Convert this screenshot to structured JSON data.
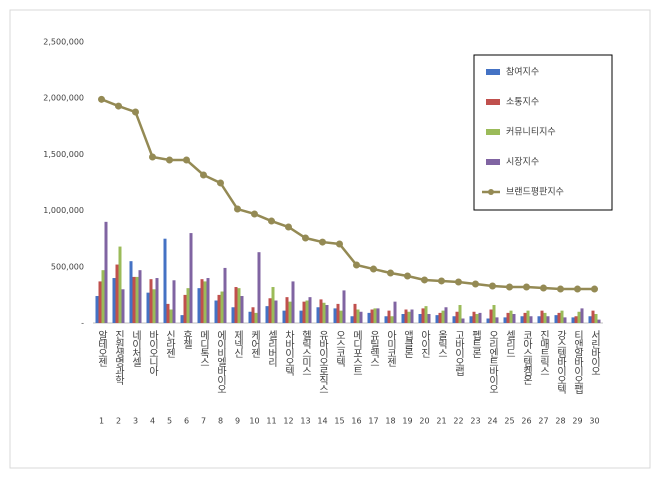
{
  "chart_data": {
    "type": "bar",
    "categories": [
      "알테오젠",
      "진원생명과학",
      "네이처셀",
      "바이오니아",
      "신라젠",
      "휴젤",
      "메디톡스",
      "에이비엘바이오",
      "제넥신",
      "케어젠",
      "셀리버리",
      "차바이오텍",
      "헬릭스미스",
      "유바이오로직스",
      "오스코텍",
      "메디포스트",
      "유틸렉스",
      "아미코젠",
      "앱클론",
      "아이진",
      "올릭스",
      "고바이오랩",
      "펩트론",
      "오리엔트바이오",
      "셀리드",
      "코아스템켐온",
      "진매트릭스",
      "강스템바이오텍",
      "티앤알바이오팹",
      "서린바이오"
    ],
    "ranks": [
      1,
      2,
      3,
      4,
      5,
      6,
      7,
      8,
      9,
      10,
      11,
      12,
      13,
      14,
      15,
      16,
      17,
      18,
      19,
      20,
      21,
      22,
      23,
      24,
      25,
      26,
      27,
      28,
      29,
      30
    ],
    "series": [
      {
        "name": "참여지수",
        "type": "bar",
        "color": "#4472c4",
        "values": [
          240000,
          400000,
          550000,
          270000,
          750000,
          70000,
          310000,
          200000,
          140000,
          100000,
          150000,
          110000,
          110000,
          140000,
          130000,
          60000,
          90000,
          60000,
          80000,
          80000,
          70000,
          60000,
          60000,
          40000,
          50000,
          60000,
          60000,
          70000,
          50000,
          60000
        ]
      },
      {
        "name": "소통지수",
        "type": "bar",
        "color": "#c0504d",
        "values": [
          370000,
          520000,
          410000,
          390000,
          170000,
          250000,
          390000,
          250000,
          320000,
          140000,
          220000,
          230000,
          190000,
          210000,
          170000,
          170000,
          120000,
          110000,
          120000,
          130000,
          90000,
          100000,
          100000,
          120000,
          90000,
          90000,
          110000,
          90000,
          60000,
          110000
        ]
      },
      {
        "name": "커뮤니티지수",
        "type": "bar",
        "color": "#9bbb59",
        "values": [
          470000,
          680000,
          410000,
          300000,
          120000,
          310000,
          370000,
          280000,
          310000,
          90000,
          320000,
          190000,
          200000,
          180000,
          110000,
          120000,
          130000,
          60000,
          100000,
          150000,
          110000,
          160000,
          80000,
          160000,
          110000,
          110000,
          90000,
          110000,
          100000,
          80000
        ]
      },
      {
        "name": "시장지수",
        "type": "bar",
        "color": "#8064a2",
        "values": [
          900000,
          300000,
          470000,
          400000,
          380000,
          800000,
          400000,
          490000,
          240000,
          630000,
          200000,
          370000,
          230000,
          160000,
          290000,
          100000,
          130000,
          190000,
          120000,
          80000,
          140000,
          40000,
          90000,
          50000,
          80000,
          60000,
          60000,
          50000,
          130000,
          30000
        ]
      },
      {
        "name": "브랜드평판지수",
        "type": "line",
        "color": "#948a54",
        "values": [
          1990000,
          1930000,
          1877000,
          1477000,
          1450000,
          1450000,
          1317000,
          1246000,
          1014000,
          970000,
          907000,
          854000,
          756000,
          720000,
          703000,
          516000,
          480000,
          445000,
          418000,
          383000,
          374000,
          365000,
          347000,
          329000,
          320000,
          320000,
          311000,
          302000,
          302000,
          302000
        ]
      }
    ],
    "ylim": [
      0,
      2500000
    ],
    "yticks": [
      {
        "value": 0,
        "label": "-"
      },
      {
        "value": 500000,
        "label": "500,000"
      },
      {
        "value": 1000000,
        "label": "1,000,000"
      },
      {
        "value": 1500000,
        "label": "1,500,000"
      },
      {
        "value": 2000000,
        "label": "2,000,000"
      },
      {
        "value": 2500000,
        "label": "2,500,000"
      }
    ],
    "grid": false,
    "legend": "upper-right"
  }
}
